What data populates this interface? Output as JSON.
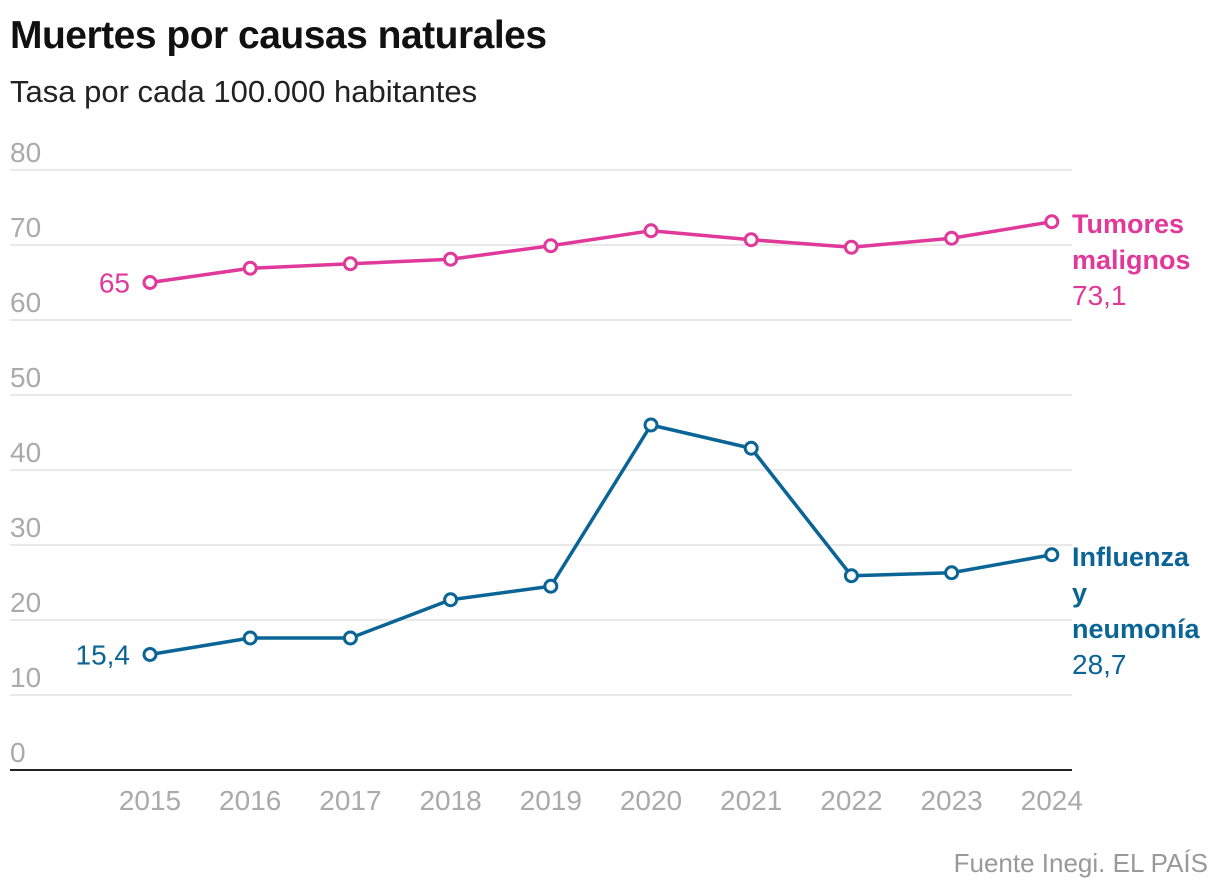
{
  "title": "Muertes por causas naturales",
  "subtitle": "Tasa por cada 100.000 habitantes",
  "source": "Fuente Inegi. EL PAÍS",
  "chart_data": {
    "type": "line",
    "title": "Muertes por causas naturales",
    "subtitle": "Tasa por cada 100.000 habitantes",
    "x": [
      "2015",
      "2016",
      "2017",
      "2018",
      "2019",
      "2020",
      "2021",
      "2022",
      "2023",
      "2024"
    ],
    "yticks": [
      "0",
      "10",
      "20",
      "30",
      "40",
      "50",
      "60",
      "70",
      "80"
    ],
    "ylim": [
      0,
      80
    ],
    "grid": true,
    "series": [
      {
        "name": "Tumores malignos",
        "color": "#e0399a",
        "values": [
          65,
          66.9,
          67.5,
          68.1,
          69.9,
          71.9,
          70.7,
          69.7,
          70.9,
          73.1
        ],
        "start_label": "65",
        "end_label": "73,1",
        "name_lines": [
          "Tumores",
          "malignos"
        ]
      },
      {
        "name": "Influenza y neumonía",
        "color": "#0a6496",
        "values": [
          15.4,
          17.6,
          17.6,
          22.7,
          24.5,
          46.0,
          42.9,
          25.9,
          26.3,
          28.7
        ],
        "start_label": "15,4",
        "end_label": "28,7",
        "name_lines": [
          "Influenza",
          "y",
          "neumonía"
        ]
      }
    ]
  }
}
